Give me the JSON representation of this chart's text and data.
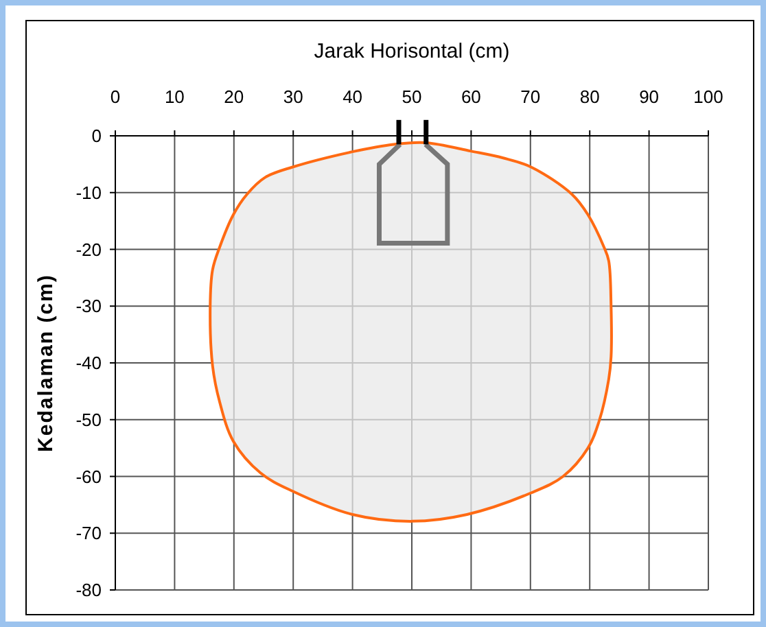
{
  "chart_data": {
    "type": "area",
    "xlabel": "Jarak Horisontal (cm)",
    "ylabel": "Kedalaman (cm)",
    "xlim": [
      0,
      100
    ],
    "xticks": [
      0,
      10,
      20,
      30,
      40,
      50,
      60,
      70,
      80,
      90,
      100
    ],
    "ylim": [
      -80,
      0
    ],
    "yticks": [
      -80,
      -70,
      -60,
      -50,
      -40,
      -30,
      -20,
      -10,
      0
    ],
    "grid": true,
    "series": [
      {
        "color": "#ff6a13",
        "x": [
          52.3,
          60,
          65.4,
          70.1,
          77,
          79.7,
          82.4,
          83.2,
          83.6,
          83.6,
          83.2,
          81.6,
          79.7,
          75.5,
          70.1,
          59.3,
          50,
          40,
          29.9,
          24.5,
          19.9,
          17.6,
          16.4,
          16,
          16.4,
          17.6,
          19.9,
          22.2,
          25.3,
          29.9,
          40,
          46.9
        ],
        "values": [
          -1.2,
          -2.7,
          -3.9,
          -5.5,
          -10.3,
          -13.9,
          -19.6,
          -22,
          -30,
          -38.9,
          -42.9,
          -50.2,
          -55,
          -60,
          -62.9,
          -66.7,
          -67.9,
          -66.7,
          -62.6,
          -59.4,
          -53.8,
          -46.9,
          -40.5,
          -30,
          -23.6,
          -19.6,
          -13.9,
          -10.3,
          -7.3,
          -5.5,
          -2.8,
          -1.5
        ]
      }
    ]
  }
}
